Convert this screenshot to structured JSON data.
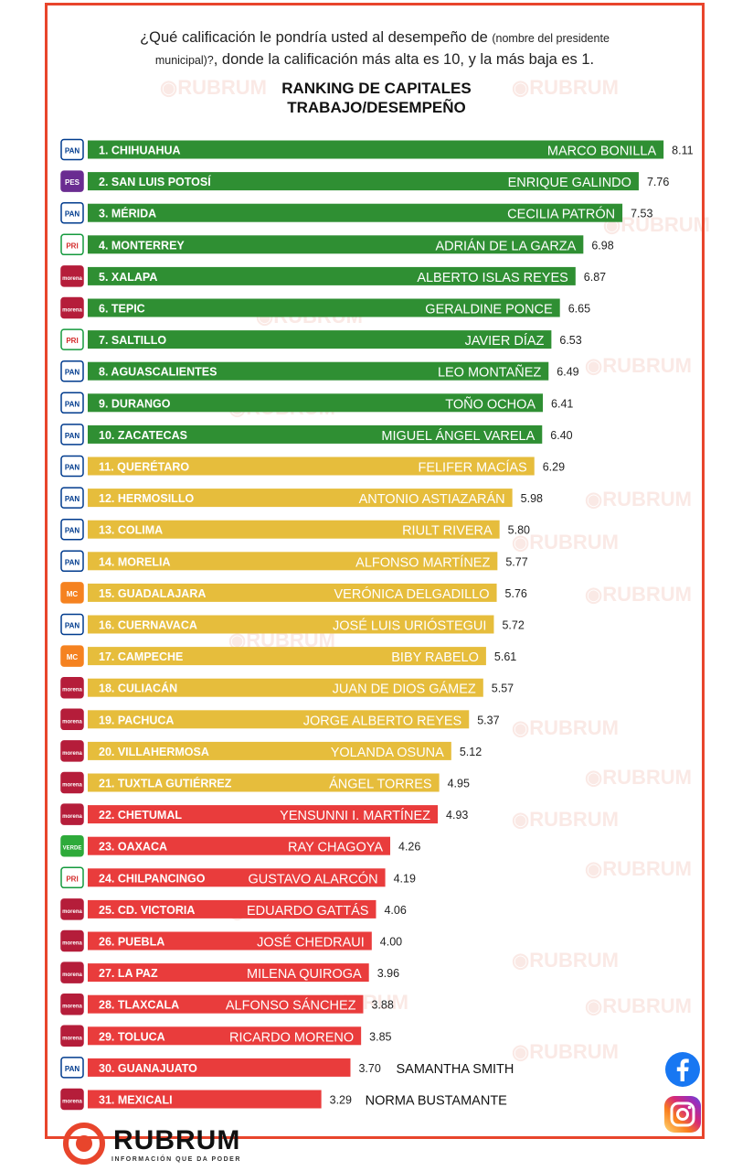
{
  "question": {
    "part1": "¿Qué calificación le pondría usted al desempeño de",
    "small": "(nombre del presidente",
    "small2": "municipal)?",
    "part2": ", donde la calificación más alta es 10, y la más baja es 1."
  },
  "title_line1": "RANKING DE CAPITALES",
  "title_line2": "TRABAJO/DESEMPEÑO",
  "watermark": "RUBRUM",
  "brand": {
    "name": "RUBRUM",
    "tagline": "INFORMACIÓN QUE DA PODER"
  },
  "colors": {
    "green": "#2f8f33",
    "yellow": "#e6bd3c",
    "red": "#e93c3c",
    "frame": "#e8452c"
  },
  "party_labels": {
    "PAN": "PAN",
    "PRI": "PRI",
    "MORENA": "morena",
    "MC": "MC",
    "PES": "PES",
    "VERDE": "VERDE"
  },
  "chart_data": {
    "type": "bar",
    "orientation": "horizontal",
    "categories": [
      "1. CHIHUAHUA",
      "2. SAN LUIS POTOSÍ",
      "3. MÉRIDA",
      "4. MONTERREY",
      "5. XALAPA",
      "6. TEPIC",
      "7. SALTILLO",
      "8. AGUASCALIENTES",
      "9. DURANGO",
      "10. ZACATECAS",
      "11. QUERÉTARO",
      "12. HERMOSILLO",
      "13. COLIMA",
      "14. MORELIA",
      "15. GUADALAJARA",
      "16. CUERNAVACA",
      "17. CAMPECHE",
      "18. CULIACÁN",
      "19. PACHUCA",
      "20. VILLAHERMOSA",
      "21. TUXTLA GUTIÉRREZ",
      "22. CHETUMAL",
      "23. OAXACA",
      "24. CHILPANCINGO",
      "25. CD. VICTORIA",
      "26. PUEBLA",
      "27. LA PAZ",
      "28. TLAXCALA",
      "29. TOLUCA",
      "30. GUANAJUATO",
      "31. MEXICALI"
    ],
    "names": [
      "MARCO BONILLA",
      "ENRIQUE GALINDO",
      "CECILIA PATRÓN",
      "ADRIÁN DE LA GARZA",
      "ALBERTO ISLAS REYES",
      "GERALDINE PONCE",
      "JAVIER DÍAZ",
      "LEO MONTAÑEZ",
      "TOÑO OCHOA",
      "MIGUEL ÁNGEL VARELA",
      "FELIFER MACÍAS",
      "ANTONIO ASTIAZARÁN",
      "RIULT RIVERA",
      "ALFONSO MARTÍNEZ",
      "VERÓNICA DELGADILLO",
      "JOSÉ LUIS URIÓSTEGUI",
      "BIBY RABELO",
      "JUAN DE DIOS GÁMEZ",
      "JORGE ALBERTO REYES",
      "YOLANDA OSUNA",
      "ÁNGEL TORRES",
      "YENSUNNI I. MARTÍNEZ",
      "RAY CHAGOYA",
      "GUSTAVO ALARCÓN",
      "EDUARDO GATTÁS",
      "JOSÉ CHEDRAUI",
      "MILENA QUIROGA",
      "ALFONSO SÁNCHEZ",
      "RICARDO MORENO",
      "SAMANTHA SMITH",
      "NORMA BUSTAMANTE"
    ],
    "value_labels": [
      "8.11",
      "7.76",
      "7.53",
      "6.98",
      "6.87",
      "6.65",
      "6.53",
      "6.49",
      "6.41",
      "6.40",
      "6.29",
      "5.98",
      "5.80",
      "5.77",
      "5.76",
      "5.72",
      "5.61",
      "5.57",
      "5.37",
      "5.12",
      "4.95",
      "4.93",
      "4.26",
      "4.19",
      "4.06",
      "4.00",
      "3.96",
      "3.88",
      "3.85",
      "3.70",
      "3.29"
    ],
    "values": [
      8.11,
      7.76,
      7.53,
      6.98,
      6.87,
      6.65,
      6.53,
      6.49,
      6.41,
      6.4,
      6.29,
      5.98,
      5.8,
      5.77,
      5.76,
      5.72,
      5.61,
      5.57,
      5.37,
      5.12,
      4.95,
      4.93,
      4.26,
      4.19,
      4.06,
      4.0,
      3.96,
      3.88,
      3.85,
      3.7,
      3.29
    ],
    "color_group": [
      "green",
      "green",
      "green",
      "green",
      "green",
      "green",
      "green",
      "green",
      "green",
      "green",
      "yellow",
      "yellow",
      "yellow",
      "yellow",
      "yellow",
      "yellow",
      "yellow",
      "yellow",
      "yellow",
      "yellow",
      "yellow",
      "red",
      "red",
      "red",
      "red",
      "red",
      "red",
      "red",
      "red",
      "red",
      "red"
    ],
    "party": [
      "PAN",
      "PES",
      "PAN",
      "PRI",
      "MORENA",
      "MORENA",
      "PRI",
      "PAN",
      "PAN",
      "PAN",
      "PAN",
      "PAN",
      "PAN",
      "PAN",
      "MC",
      "PAN",
      "MC",
      "MORENA",
      "MORENA",
      "MORENA",
      "MORENA",
      "MORENA",
      "VERDE",
      "PRI",
      "MORENA",
      "MORENA",
      "MORENA",
      "MORENA",
      "MORENA",
      "PAN",
      "MORENA"
    ],
    "name_outside": [
      false,
      false,
      false,
      false,
      false,
      false,
      false,
      false,
      false,
      false,
      false,
      false,
      false,
      false,
      false,
      false,
      false,
      false,
      false,
      false,
      false,
      false,
      false,
      false,
      false,
      false,
      false,
      false,
      false,
      true,
      true
    ],
    "xlim": [
      0,
      10
    ],
    "grid": false,
    "legend": "none"
  }
}
